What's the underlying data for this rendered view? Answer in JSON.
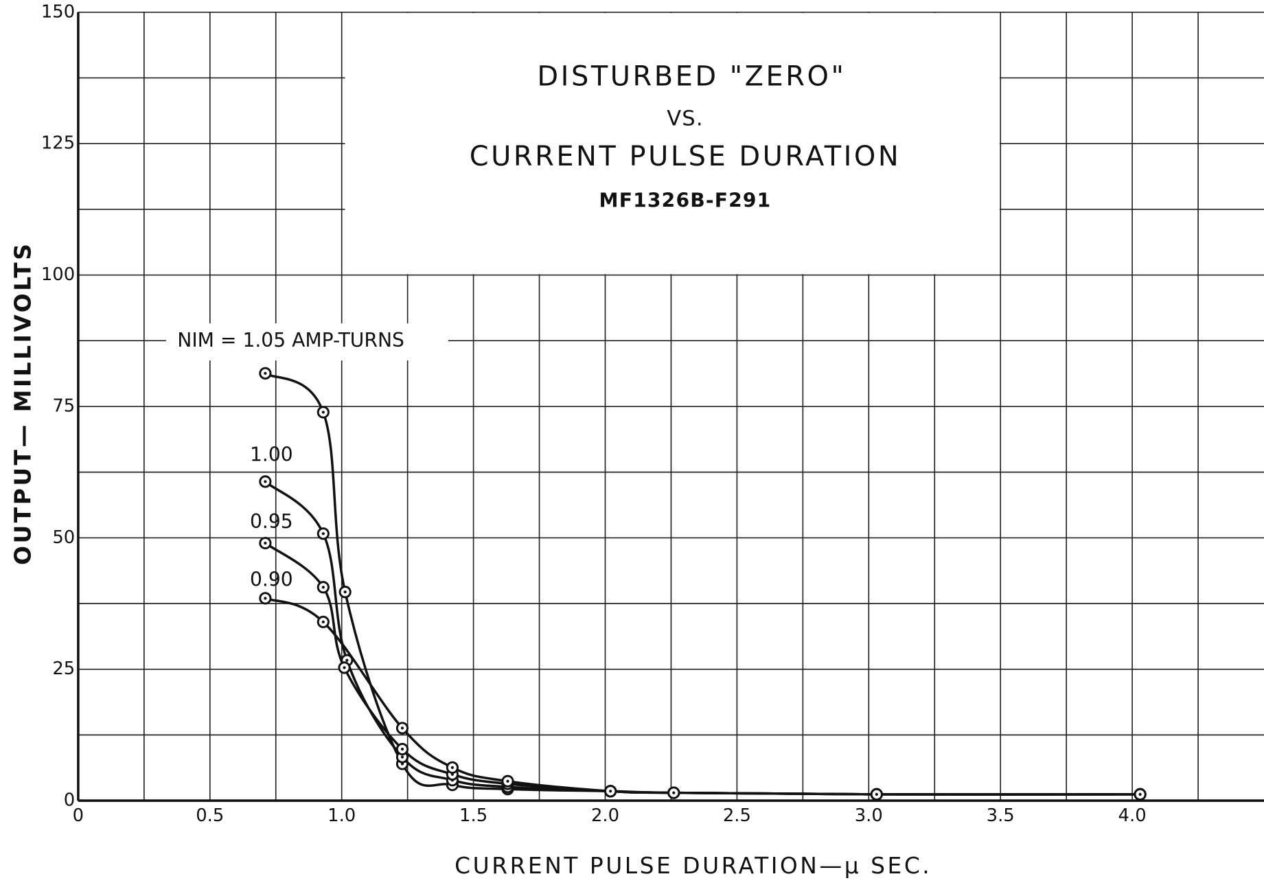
{
  "chart_data": {
    "type": "line",
    "title": "DISTURBED \"ZERO\"",
    "subtitle_lines": [
      "VS.",
      "CURRENT PULSE DURATION",
      "MF1326B-F291"
    ],
    "x_label": "CURRENT PULSE DURATION—μ SEC.",
    "y_label": "OUTPUT— MILLIVOLTS",
    "xlim": [
      0,
      4.5
    ],
    "ylim": [
      0,
      150
    ],
    "xticks": [
      0,
      0.5,
      {
        "value": 1,
        "label": "1.0"
      },
      1.5,
      {
        "value": 2,
        "label": "2.0"
      },
      2.5,
      {
        "value": 3,
        "label": "3.0"
      },
      3.5,
      {
        "value": 4,
        "label": "4.0"
      }
    ],
    "yticks": [
      0,
      25,
      50,
      75,
      100,
      125,
      150
    ],
    "xgrid": [
      0.25,
      0.75,
      1.25,
      1.75,
      2.25,
      2.75,
      3.25,
      3.75,
      4.25
    ],
    "ygrid": [
      12.5,
      37.5,
      62.5,
      87.5,
      112.5,
      137.5
    ],
    "grid": true,
    "color": "#111111",
    "series": [
      {
        "name": "NIM = 1.05 AMP-TURNS",
        "x": [
          0.71,
          0.93,
          1.013,
          1.23,
          1.42,
          1.63,
          2.02,
          2.26,
          3.03,
          4.03
        ],
        "values": [
          81.3,
          73.9,
          39.7,
          7.0,
          3.0,
          2.2,
          1.8,
          1.5,
          1.2,
          1.2
        ]
      },
      {
        "name": "1.00",
        "x": [
          0.71,
          0.93,
          1.02,
          1.23,
          1.42,
          1.63,
          2.02,
          2.26,
          3.03,
          4.03
        ],
        "values": [
          60.7,
          50.8,
          26.7,
          8.3,
          3.9,
          2.6,
          1.8,
          1.5,
          1.2,
          1.2
        ]
      },
      {
        "name": "0.95",
        "x": [
          0.71,
          0.93,
          1.01,
          1.23,
          1.42,
          1.63,
          2.02,
          2.26,
          3.03,
          4.03
        ],
        "values": [
          49.0,
          40.6,
          25.3,
          9.8,
          5.0,
          3.2,
          1.8,
          1.5,
          1.2,
          1.2
        ]
      },
      {
        "name": "0.90",
        "x": [
          0.71,
          0.93,
          1.23,
          1.42,
          1.63,
          2.02,
          2.26,
          3.03,
          4.03
        ],
        "values": [
          38.5,
          34.0,
          13.8,
          6.3,
          3.7,
          1.8,
          1.5,
          1.2,
          1.2
        ]
      }
    ]
  }
}
